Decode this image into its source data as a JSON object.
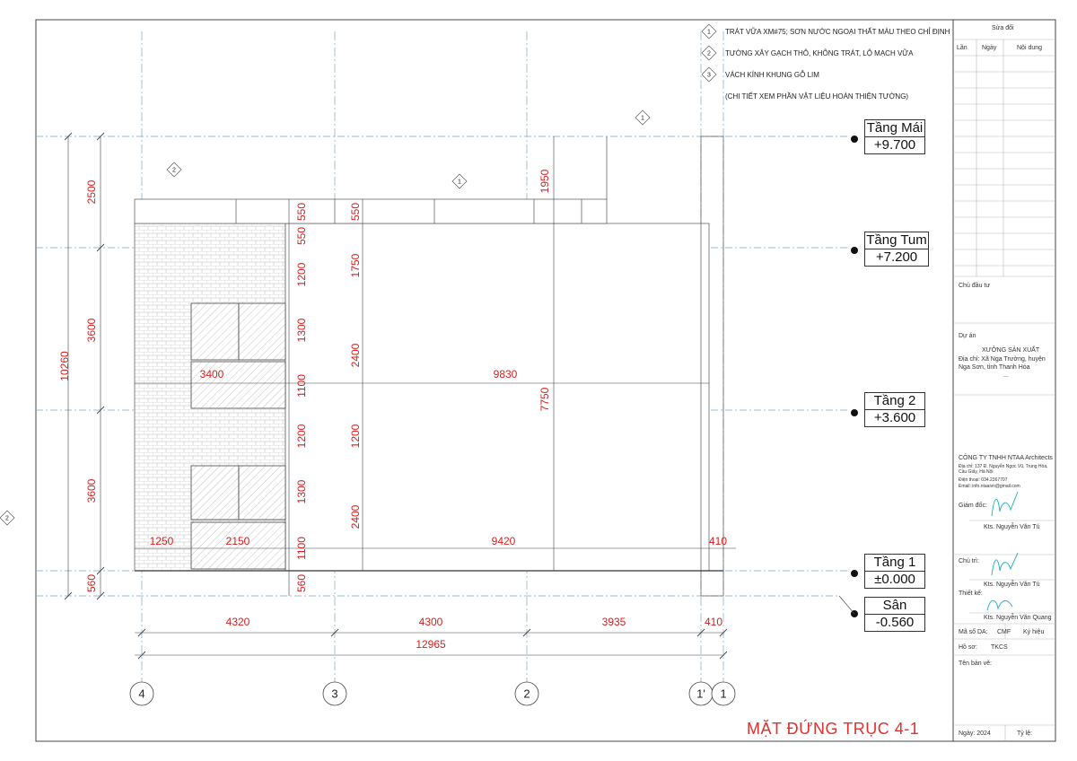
{
  "notes": [
    {
      "tag": "1",
      "text": "TRÁT VỮA XM#75; SƠN NƯỚC NGOẠI THẤT MÀU THEO CHỈ ĐỊNH"
    },
    {
      "tag": "2",
      "text": "TƯỜNG XÂY GẠCH THÔ, KHÔNG TRÁT, LỘ MẠCH VỮA"
    },
    {
      "tag": "3",
      "text": "VÁCH KÍNH KHUNG GỖ LIM"
    },
    {
      "tag": "",
      "text": "(CHI TIẾT XEM PHẦN VẬT LIỆU HOÀN THIỆN TƯỜNG)"
    }
  ],
  "levels": [
    {
      "name": "Tầng Mái",
      "value": "+9.700"
    },
    {
      "name": "Tầng Tum",
      "value": "+7.200"
    },
    {
      "name": "Tầng 2",
      "value": "+3.600"
    },
    {
      "name": "Tầng 1",
      "value": "±0.000"
    },
    {
      "name": "Sân",
      "value": "-0.560"
    }
  ],
  "grid_labels": [
    "4",
    "3",
    "2",
    "1'",
    "1"
  ],
  "dims_bottom": [
    "4320",
    "4300",
    "3935",
    "410",
    "12965"
  ],
  "dims_left": [
    "10260",
    "2500",
    "3600",
    "3600",
    "560"
  ],
  "dims_mid": [
    "550",
    "550",
    "1200",
    "1300",
    "1100",
    "1200",
    "1300",
    "1100",
    "560"
  ],
  "dims_col3": [
    "550",
    "1750",
    "2400",
    "1200",
    "2400"
  ],
  "dims_h": [
    "3400",
    "9830",
    "1250",
    "2150",
    "9420",
    "410"
  ],
  "dims_v_right": [
    "1950",
    "7750"
  ],
  "markers": [
    "1",
    "2",
    "1",
    "2"
  ],
  "title": "MẶT ĐỨNG TRỤC  4-1",
  "titleblock": {
    "revisions_header": "Sửa đổi",
    "rev_cols": [
      "Lần",
      "Ngày",
      "Nội dung"
    ],
    "owner_label": "Chủ đầu tư",
    "project_label": "Dự án",
    "project_name": "XƯỞNG SẢN XUẤT",
    "project_addr": "Địa chỉ: Xã Nga Trường, huyện Nga Sơn, tỉnh Thanh Hóa",
    "project_dots": "...",
    "company": "CÔNG TY TNHH NTAA Architects",
    "company_addr": "Địa chỉ: 137 Đ. Nguyễn Ngọc Vũ, Trung Hòa, Cầu Giấy, Hà Nội",
    "company_phone": "Điện thoại: 034.2367707",
    "company_email": "Email: info.ntaaivn@gmail.com",
    "director_label": "Giám đốc:",
    "director_name": "Kts. Nguyễn Văn Tú",
    "lead_label": "Chủ trì:",
    "lead_name": "Kts. Nguyễn Văn Tú",
    "designer_label": "Thiết kế:",
    "designer_name": "Kts. Nguyễn Văn Quang",
    "project_code_label": "Mã số DA:",
    "project_code": "CMF",
    "symbol_label": "Ký hiệu",
    "file_label": "Hồ sơ:",
    "file_value": "TKCS",
    "drawing_name_label": "Tên bản vẽ:",
    "date_label": "Ngày: 2024",
    "scale_label": "Tỷ lệ:"
  },
  "colors": {
    "dim": "#d42020",
    "grid": "#7fa8c8",
    "line": "#333333",
    "accent": "#e03030",
    "signature": "#2ab3c8"
  }
}
